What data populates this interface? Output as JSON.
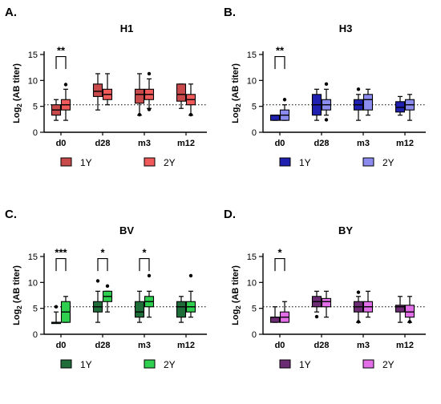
{
  "chart_data": [
    {
      "type": "box",
      "panel_label": "A.",
      "title": "H1",
      "ylabel": "Log2 (AB titer)",
      "ylim": [
        0,
        15
      ],
      "yticks": [
        0,
        5,
        10,
        15
      ],
      "reference_line_y": 5.3,
      "categories": [
        "d0",
        "d28",
        "m3",
        "m12"
      ],
      "series": [
        {
          "name": "1Y",
          "color": "#c94a4a",
          "boxes": [
            {
              "min": 2.3,
              "q1": 3.3,
              "median": 4.3,
              "q3": 5.3,
              "max": 6.3
            },
            {
              "min": 4.3,
              "q1": 6.9,
              "median": 7.9,
              "q3": 9.3,
              "max": 11.3
            },
            {
              "min": 3.3,
              "q1": 5.6,
              "median": 7.3,
              "q3": 8.3,
              "max": 11.3,
              "outliers": [
                3.4
              ]
            },
            {
              "min": 4.6,
              "q1": 6.0,
              "median": 7.3,
              "q3": 9.3,
              "max": 9.3
            }
          ]
        },
        {
          "name": "2Y",
          "color": "#f05a5a",
          "boxes": [
            {
              "min": 2.3,
              "q1": 4.3,
              "median": 5.3,
              "q3": 6.3,
              "max": 8.3,
              "outliers": [
                9.2
              ]
            },
            {
              "min": 5.3,
              "q1": 6.3,
              "median": 7.3,
              "q3": 8.3,
              "max": 11.3
            },
            {
              "min": 4.6,
              "q1": 6.3,
              "median": 7.3,
              "q3": 8.3,
              "max": 10.3,
              "outliers": [
                11.3,
                4.4
              ]
            },
            {
              "min": 3.3,
              "q1": 5.3,
              "median": 6.3,
              "q3": 7.3,
              "max": 9.3,
              "outliers": [
                3.4
              ]
            }
          ]
        }
      ],
      "significance": [
        {
          "category": "d0",
          "label": "**"
        }
      ]
    },
    {
      "type": "box",
      "panel_label": "B.",
      "title": "H3",
      "ylabel": "Log2 (AB titer)",
      "ylim": [
        0,
        15
      ],
      "yticks": [
        0,
        5,
        10,
        15
      ],
      "reference_line_y": 5.3,
      "categories": [
        "d0",
        "d28",
        "m3",
        "m12"
      ],
      "series": [
        {
          "name": "1Y",
          "color": "#1f1fb0",
          "boxes": [
            {
              "min": 2.3,
              "q1": 2.3,
              "median": 3.3,
              "q3": 3.3,
              "max": 3.3
            },
            {
              "min": 2.3,
              "q1": 3.3,
              "median": 5.3,
              "q3": 7.3,
              "max": 8.3
            },
            {
              "min": 2.3,
              "q1": 4.3,
              "median": 5.3,
              "q3": 6.3,
              "max": 7.3,
              "outliers": [
                8.3
              ]
            },
            {
              "min": 3.3,
              "q1": 3.9,
              "median": 4.8,
              "q3": 5.9,
              "max": 6.9
            }
          ]
        },
        {
          "name": "2Y",
          "color": "#8c8cf0",
          "boxes": [
            {
              "min": 2.3,
              "q1": 2.3,
              "median": 3.3,
              "q3": 4.3,
              "max": 5.3,
              "outliers": [
                6.3
              ]
            },
            {
              "min": 3.3,
              "q1": 4.3,
              "median": 5.3,
              "q3": 6.3,
              "max": 8.3,
              "outliers": [
                2.4,
                9.3
              ]
            },
            {
              "min": 3.3,
              "q1": 4.3,
              "median": 6.3,
              "q3": 7.3,
              "max": 8.3
            },
            {
              "min": 2.3,
              "q1": 4.3,
              "median": 5.3,
              "q3": 6.3,
              "max": 7.3
            }
          ]
        }
      ],
      "significance": [
        {
          "category": "d0",
          "label": "**"
        }
      ]
    },
    {
      "type": "box",
      "panel_label": "C.",
      "title": "BV",
      "ylabel": "Log2 (AB titer)",
      "ylim": [
        0,
        15
      ],
      "yticks": [
        0,
        5,
        10,
        15
      ],
      "reference_line_y": 5.3,
      "categories": [
        "d0",
        "d28",
        "m3",
        "m12"
      ],
      "series": [
        {
          "name": "1Y",
          "color": "#1f6e3a",
          "boxes": [
            {
              "min": 2.3,
              "q1": 2.3,
              "median": 2.3,
              "q3": 2.3,
              "max": 4.3,
              "outliers": [
                5.3
              ]
            },
            {
              "min": 2.3,
              "q1": 4.3,
              "median": 5.3,
              "q3": 6.3,
              "max": 8.3,
              "outliers": [
                10.3
              ]
            },
            {
              "min": 2.3,
              "q1": 3.3,
              "median": 4.3,
              "q3": 6.3,
              "max": 8.3
            },
            {
              "min": 2.3,
              "q1": 3.3,
              "median": 5.3,
              "q3": 6.3,
              "max": 7.3
            }
          ]
        },
        {
          "name": "2Y",
          "color": "#2fcf4f",
          "boxes": [
            {
              "min": 2.3,
              "q1": 2.3,
              "median": 4.3,
              "q3": 6.3,
              "max": 7.3
            },
            {
              "min": 4.3,
              "q1": 6.3,
              "median": 7.3,
              "q3": 8.3,
              "max": 8.3,
              "outliers": [
                9.3
              ]
            },
            {
              "min": 3.3,
              "q1": 5.3,
              "median": 6.3,
              "q3": 7.3,
              "max": 8.3,
              "outliers": [
                11.3
              ]
            },
            {
              "min": 3.3,
              "q1": 4.3,
              "median": 5.3,
              "q3": 6.3,
              "max": 8.3,
              "outliers": [
                11.3
              ]
            }
          ]
        }
      ],
      "significance": [
        {
          "category": "d0",
          "label": "***"
        },
        {
          "category": "d28",
          "label": "*"
        },
        {
          "category": "m3",
          "label": "*"
        }
      ]
    },
    {
      "type": "box",
      "panel_label": "D.",
      "title": "BY",
      "ylabel": "Log2 (AB titer)",
      "ylim": [
        0,
        15
      ],
      "yticks": [
        0,
        5,
        10,
        15
      ],
      "reference_line_y": 5.3,
      "categories": [
        "d0",
        "d28",
        "m3",
        "m12"
      ],
      "series": [
        {
          "name": "1Y",
          "color": "#6b2c73",
          "boxes": [
            {
              "min": 2.3,
              "q1": 2.3,
              "median": 3.3,
              "q3": 3.3,
              "max": 5.3
            },
            {
              "min": 4.3,
              "q1": 5.3,
              "median": 6.3,
              "q3": 7.3,
              "max": 8.3,
              "outliers": [
                3.4
              ]
            },
            {
              "min": 2.3,
              "q1": 4.3,
              "median": 5.3,
              "q3": 6.3,
              "max": 7.3,
              "outliers": [
                8.1,
                2.4
              ]
            },
            {
              "min": 2.3,
              "q1": 4.3,
              "median": 5.3,
              "q3": 5.6,
              "max": 7.3
            }
          ]
        },
        {
          "name": "2Y",
          "color": "#e26fe8",
          "boxes": [
            {
              "min": 2.3,
              "q1": 2.3,
              "median": 3.3,
              "q3": 4.3,
              "max": 6.3
            },
            {
              "min": 3.3,
              "q1": 5.3,
              "median": 6.3,
              "q3": 6.9,
              "max": 8.3
            },
            {
              "min": 3.3,
              "q1": 4.3,
              "median": 5.3,
              "q3": 6.3,
              "max": 8.3
            },
            {
              "min": 2.3,
              "q1": 3.3,
              "median": 4.3,
              "q3": 5.6,
              "max": 7.3,
              "outliers": [
                2.4
              ]
            }
          ]
        }
      ],
      "significance": [
        {
          "category": "d0",
          "label": "*"
        }
      ]
    }
  ]
}
